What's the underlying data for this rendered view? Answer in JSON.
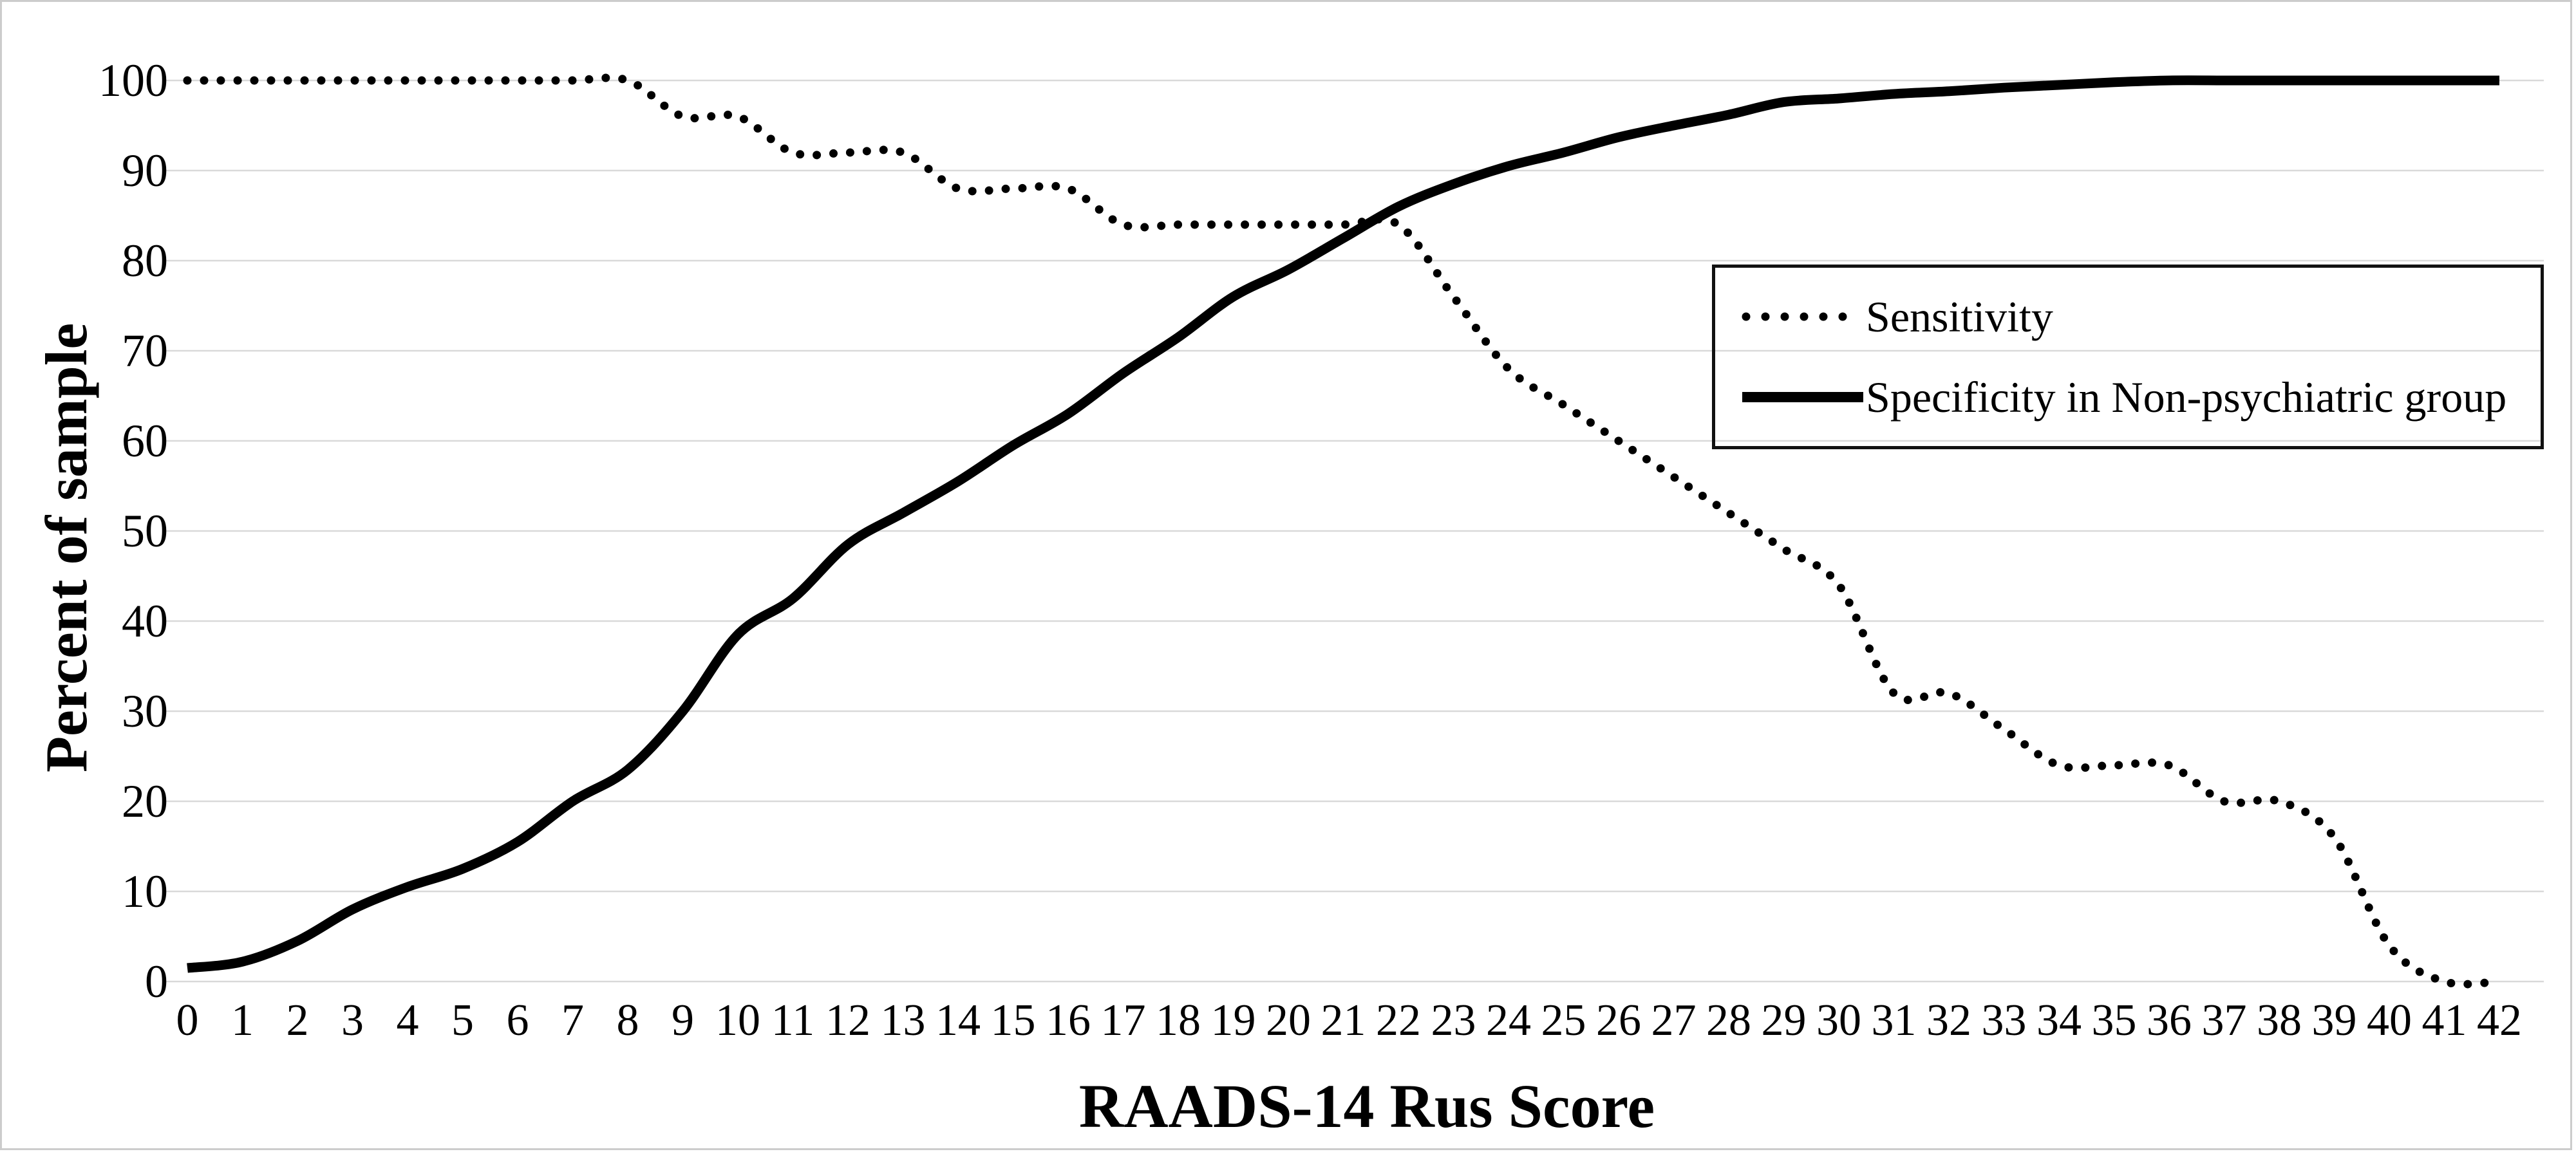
{
  "chart_data": {
    "type": "line",
    "title": "",
    "xlabel": "RAADS-14 Rus Score",
    "ylabel": "Percent of sample",
    "x": [
      0,
      1,
      2,
      3,
      4,
      5,
      6,
      7,
      8,
      9,
      10,
      11,
      12,
      13,
      14,
      15,
      16,
      17,
      18,
      19,
      20,
      21,
      22,
      23,
      24,
      25,
      26,
      27,
      28,
      29,
      30,
      31,
      32,
      33,
      34,
      35,
      36,
      37,
      38,
      39,
      40,
      41,
      42
    ],
    "xtick_labels": [
      "0",
      "1",
      "2",
      "3",
      "4",
      "5",
      "6",
      "7",
      "8",
      "9",
      "10",
      "11",
      "12",
      "13",
      "14",
      "15",
      "16",
      "17",
      "18",
      "19",
      "20",
      "21",
      "22",
      "23",
      "24",
      "25",
      "26",
      "27",
      "28",
      "29",
      "30",
      "31",
      "32",
      "33",
      "34",
      "35",
      "36",
      "37",
      "38",
      "39",
      "40",
      "41",
      "42"
    ],
    "yticks": [
      0,
      10,
      20,
      30,
      40,
      50,
      60,
      70,
      80,
      90,
      100
    ],
    "ylim": [
      0,
      100
    ],
    "grid": "horizontal",
    "legend_position": "upper-right",
    "series": [
      {
        "name": "Sensitivity",
        "style": "dotted",
        "color": "#000000",
        "values": [
          100,
          100,
          100,
          100,
          100,
          100,
          100,
          100,
          100,
          96,
          96,
          92,
          92,
          92,
          88,
          88,
          88,
          84,
          84,
          84,
          84,
          84,
          84,
          76,
          68,
          64,
          60,
          56,
          52,
          48,
          44,
          32,
          32,
          28,
          24,
          24,
          24,
          20,
          20,
          16,
          4,
          0,
          0
        ]
      },
      {
        "name": "Specificity in Non-psychiatric group",
        "style": "solid",
        "color": "#000000",
        "values": [
          1.5,
          2.2,
          4.5,
          8,
          10.5,
          12.5,
          15.5,
          20,
          23.5,
          30,
          38.5,
          42.5,
          48.5,
          52,
          55.5,
          59.5,
          63,
          67.5,
          71.5,
          76,
          79,
          82.5,
          86,
          88.5,
          90.5,
          92,
          93.7,
          95,
          96.2,
          97.6,
          98,
          98.5,
          98.8,
          99.2,
          99.5,
          99.8,
          100,
          100,
          100,
          100,
          100,
          100,
          100
        ]
      }
    ],
    "colors": {
      "line": "#000000",
      "gridline": "#d9d9d9",
      "figure_border": "#cccccc",
      "legend_border": "#111111",
      "background": "#ffffff"
    }
  }
}
